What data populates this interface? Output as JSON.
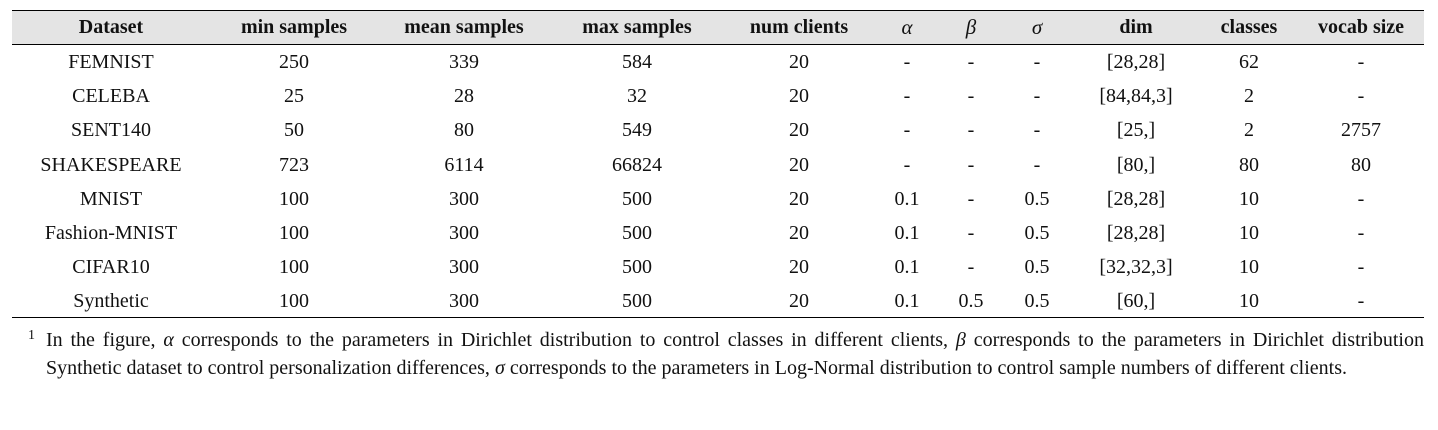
{
  "table": {
    "headers": [
      "Dataset",
      "min samples",
      "mean samples",
      "max samples",
      "num clients",
      "α",
      "β",
      "σ",
      "dim",
      "classes",
      "vocab size"
    ],
    "rows": [
      [
        "FEMNIST",
        "250",
        "339",
        "584",
        "20",
        "-",
        "-",
        "-",
        "[28,28]",
        "62",
        "-"
      ],
      [
        "CELEBA",
        "25",
        "28",
        "32",
        "20",
        "-",
        "-",
        "-",
        "[84,84,3]",
        "2",
        "-"
      ],
      [
        "SENT140",
        "50",
        "80",
        "549",
        "20",
        "-",
        "-",
        "-",
        "[25,]",
        "2",
        "2757"
      ],
      [
        "SHAKESPEARE",
        "723",
        "6114",
        "66824",
        "20",
        "-",
        "-",
        "-",
        "[80,]",
        "80",
        "80"
      ],
      [
        "MNIST",
        "100",
        "300",
        "500",
        "20",
        "0.1",
        "-",
        "0.5",
        "[28,28]",
        "10",
        "-"
      ],
      [
        "Fashion-MNIST",
        "100",
        "300",
        "500",
        "20",
        "0.1",
        "-",
        "0.5",
        "[28,28]",
        "10",
        "-"
      ],
      [
        "CIFAR10",
        "100",
        "300",
        "500",
        "20",
        "0.1",
        "-",
        "0.5",
        "[32,32,3]",
        "10",
        "-"
      ],
      [
        "Synthetic",
        "100",
        "300",
        "500",
        "20",
        "0.1",
        "0.5",
        "0.5",
        "[60,]",
        "10",
        "-"
      ]
    ]
  },
  "footnote": {
    "marker": "1",
    "part1": "In the figure, ",
    "sym1": "α",
    "part2": " corresponds to the parameters in Dirichlet distribution to control classes in different clients, ",
    "sym2": "β",
    "part3": " corresponds to the parameters in Dirichlet distribution Synthetic dataset to control personalization differences, ",
    "sym3": "σ",
    "part4": " corresponds to the parameters in Log-Normal distribution to control sample numbers of different clients."
  }
}
